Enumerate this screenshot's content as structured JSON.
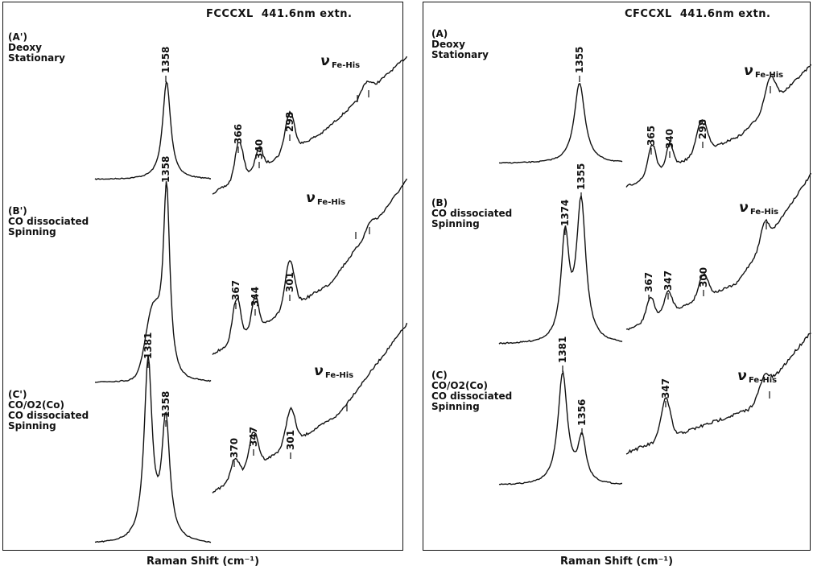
{
  "chart_data": [
    {
      "type": "line",
      "title": "FCCCXL  441.6nm extn.",
      "xlabel": "Raman Shift (cm⁻¹)",
      "ylabel": "",
      "traces": [
        {
          "label_lines": [
            "(A')",
            "Deoxy",
            "Stationary"
          ],
          "peaks_high_freq": [
            1358
          ],
          "peaks_low_freq": [
            366,
            340,
            298
          ],
          "fe_his_label": "ν",
          "fe_his_sub": "Fe-His"
        },
        {
          "label_lines": [
            "(B')",
            "CO dissociated",
            "Spinning"
          ],
          "peaks_high_freq": [
            1358
          ],
          "peaks_low_freq": [
            367,
            344,
            301
          ],
          "fe_his_label": "ν",
          "fe_his_sub": "Fe-His"
        },
        {
          "label_lines": [
            "(C')",
            "CO/O2(Co)",
            "CO dissociated",
            "Spinning"
          ],
          "peaks_high_freq": [
            1381,
            1358
          ],
          "peaks_low_freq": [
            370,
            347,
            301
          ],
          "fe_his_label": "ν",
          "fe_his_sub": "Fe-His"
        }
      ]
    },
    {
      "type": "line",
      "title": "CFCCXL  441.6nm extn.",
      "xlabel": "Raman Shift (cm⁻¹)",
      "ylabel": "",
      "traces": [
        {
          "label_lines": [
            "(A)",
            "Deoxy",
            "Stationary"
          ],
          "peaks_high_freq": [
            1355
          ],
          "peaks_low_freq": [
            365,
            340,
            298
          ],
          "fe_his_label": "ν",
          "fe_his_sub": "Fe-His"
        },
        {
          "label_lines": [
            "(B)",
            "CO dissociated",
            "Spinning"
          ],
          "peaks_high_freq": [
            1374,
            1355
          ],
          "peaks_low_freq": [
            367,
            347,
            300
          ],
          "fe_his_label": "ν",
          "fe_his_sub": "Fe-His"
        },
        {
          "label_lines": [
            "(C)",
            "CO/O2(Co)",
            "CO dissociated",
            "Spinning"
          ],
          "peaks_high_freq": [
            1381,
            1356
          ],
          "peaks_low_freq": [
            347
          ],
          "fe_his_label": "ν",
          "fe_his_sub": "Fe-His"
        }
      ]
    }
  ]
}
